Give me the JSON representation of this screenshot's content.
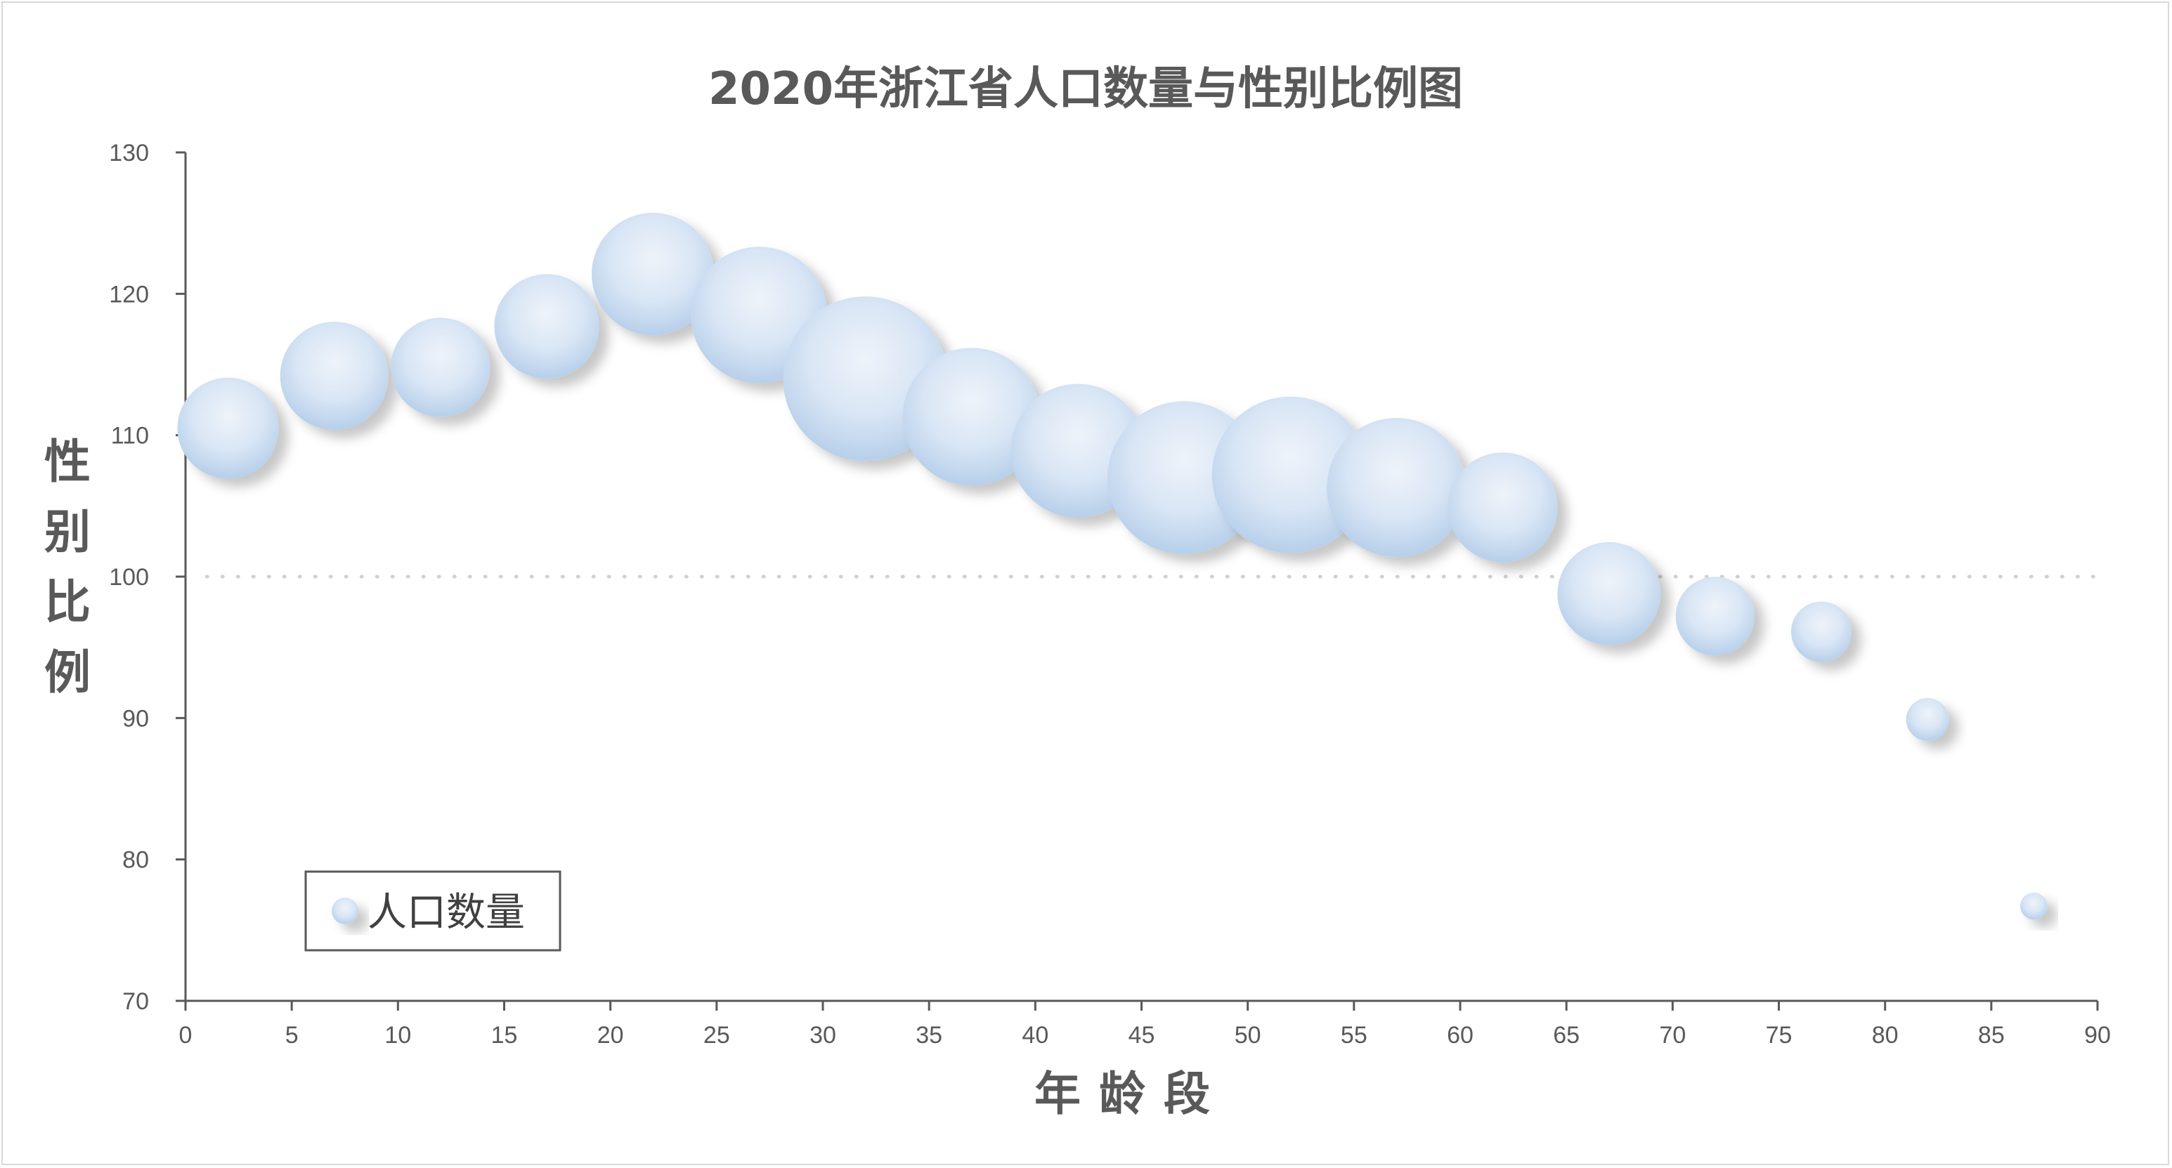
{
  "chart_data": {
    "type": "bubble",
    "title": "2020年浙江省人口数量与性别比例图",
    "xlabel": "年龄段",
    "ylabel": "性别比例",
    "xlim": [
      0,
      90
    ],
    "ylim": [
      70,
      130
    ],
    "x_ticks": [
      0,
      5,
      10,
      15,
      20,
      25,
      30,
      35,
      40,
      45,
      50,
      55,
      60,
      65,
      70,
      75,
      80,
      85,
      90
    ],
    "y_ticks": [
      70,
      80,
      90,
      100,
      110,
      120,
      130
    ],
    "reference_line": {
      "y": 100,
      "style": "dotted"
    },
    "legend_position": "bottom-left",
    "colors": {
      "bubble_light": "#eef3fa",
      "bubble_dark": "#b7cfea",
      "axis": "#595959",
      "reference": "#d0d0d0"
    },
    "series": [
      {
        "name": "人口数量",
        "x": [
          2,
          7,
          12,
          17,
          22,
          27,
          32,
          37,
          42,
          47,
          52,
          57,
          62,
          67,
          72,
          77,
          82,
          87
        ],
        "y": [
          110.5,
          114.2,
          114.8,
          117.7,
          121.4,
          118.5,
          114,
          111.3,
          108.9,
          107,
          107.2,
          106.3,
          104.9,
          98.8,
          97.2,
          96.1,
          89.9,
          76.7
        ],
        "size": [
          28,
          32,
          27,
          30,
          41,
          51,
          74,
          52,
          49,
          64,
          67,
          53,
          33,
          29,
          17,
          10,
          5,
          2
        ]
      }
    ]
  }
}
